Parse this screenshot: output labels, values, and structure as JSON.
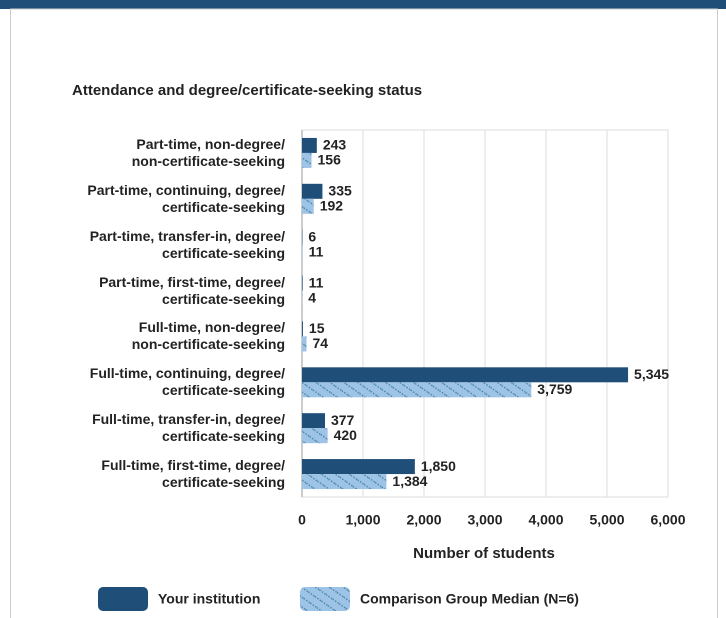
{
  "chart_data": {
    "type": "bar",
    "orientation": "horizontal",
    "title": "Attendance and degree/certificate-seeking status",
    "categories": [
      "Part-time, non-degree/\nnon-certificate-seeking",
      "Part-time, continuing, degree/\ncertificate-seeking",
      "Part-time, transfer-in, degree/\ncertificate-seeking",
      "Part-time, first-time, degree/\ncertificate-seeking",
      "Full-time, non-degree/\nnon-certificate-seeking",
      "Full-time, continuing, degree/\ncertificate-seeking",
      "Full-time, transfer-in, degree/\ncertificate-seeking",
      "Full-time, first-time, degree/\ncertificate-seeking"
    ],
    "series": [
      {
        "name": "Your institution",
        "color": "#1f4e79",
        "pattern": false,
        "values": [
          243,
          335,
          6,
          11,
          15,
          5345,
          377,
          1850
        ],
        "value_labels": [
          "243",
          "335",
          "6",
          "11",
          "15",
          "5,345",
          "377",
          "1,850"
        ]
      },
      {
        "name": "Comparison Group Median (N=6)",
        "color": "#9dc3e6",
        "pattern": true,
        "values": [
          156,
          192,
          11,
          4,
          74,
          3759,
          420,
          1384
        ],
        "value_labels": [
          "156",
          "192",
          "11",
          "4",
          "74",
          "3,759",
          "420",
          "1,384"
        ]
      }
    ],
    "xlabel": "Number of students",
    "xlim": [
      0,
      6000
    ],
    "xticks": [
      0,
      {
        "value": 1000,
        "label": "1,000"
      },
      {
        "value": 2000,
        "label": "2,000"
      },
      {
        "value": 3000,
        "label": "3,000"
      },
      {
        "value": 4000,
        "label": "4,000"
      },
      {
        "value": 5000,
        "label": "5,000"
      },
      {
        "value": 6000,
        "label": "6,000"
      }
    ],
    "grid": true,
    "legend": "bottom"
  }
}
